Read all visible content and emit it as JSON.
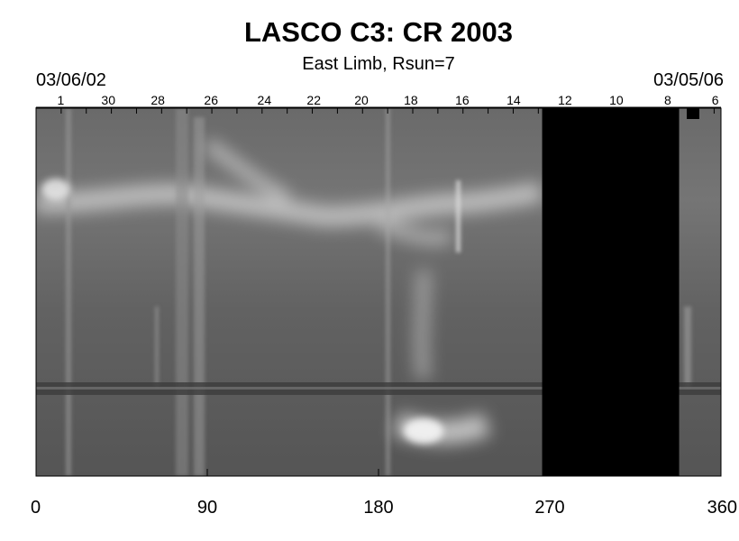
{
  "title": "LASCO C3: CR 2003",
  "subtitle": "East Limb, Rsun=7",
  "date_start": "03/06/02",
  "date_end": "03/05/06",
  "day_labels": [
    {
      "text": "1",
      "x": 13
    },
    {
      "text": "30",
      "x": 38
    },
    {
      "text": "28",
      "x": 64
    },
    {
      "text": "26",
      "x": 92
    },
    {
      "text": "24",
      "x": 120
    },
    {
      "text": "22",
      "x": 146
    },
    {
      "text": "20",
      "x": 171
    },
    {
      "text": "18",
      "x": 197
    },
    {
      "text": "16",
      "x": 224
    },
    {
      "text": "14",
      "x": 251
    },
    {
      "text": "12",
      "x": 278
    },
    {
      "text": "10",
      "x": 305
    },
    {
      "text": "8",
      "x": 332
    },
    {
      "text": "6",
      "x": 357
    }
  ],
  "chart_data": {
    "type": "heatmap",
    "xlim": [
      0,
      360
    ],
    "xticks": [
      0,
      90,
      180,
      270,
      360
    ],
    "xtick_labels": [
      "0",
      "90",
      "180",
      "270",
      "360"
    ],
    "data_gaps": [
      [
        266,
        338
      ]
    ],
    "colors": {
      "background": "#5a5a5a",
      "gap": "#000000",
      "bright": "#f2f2f2"
    }
  }
}
